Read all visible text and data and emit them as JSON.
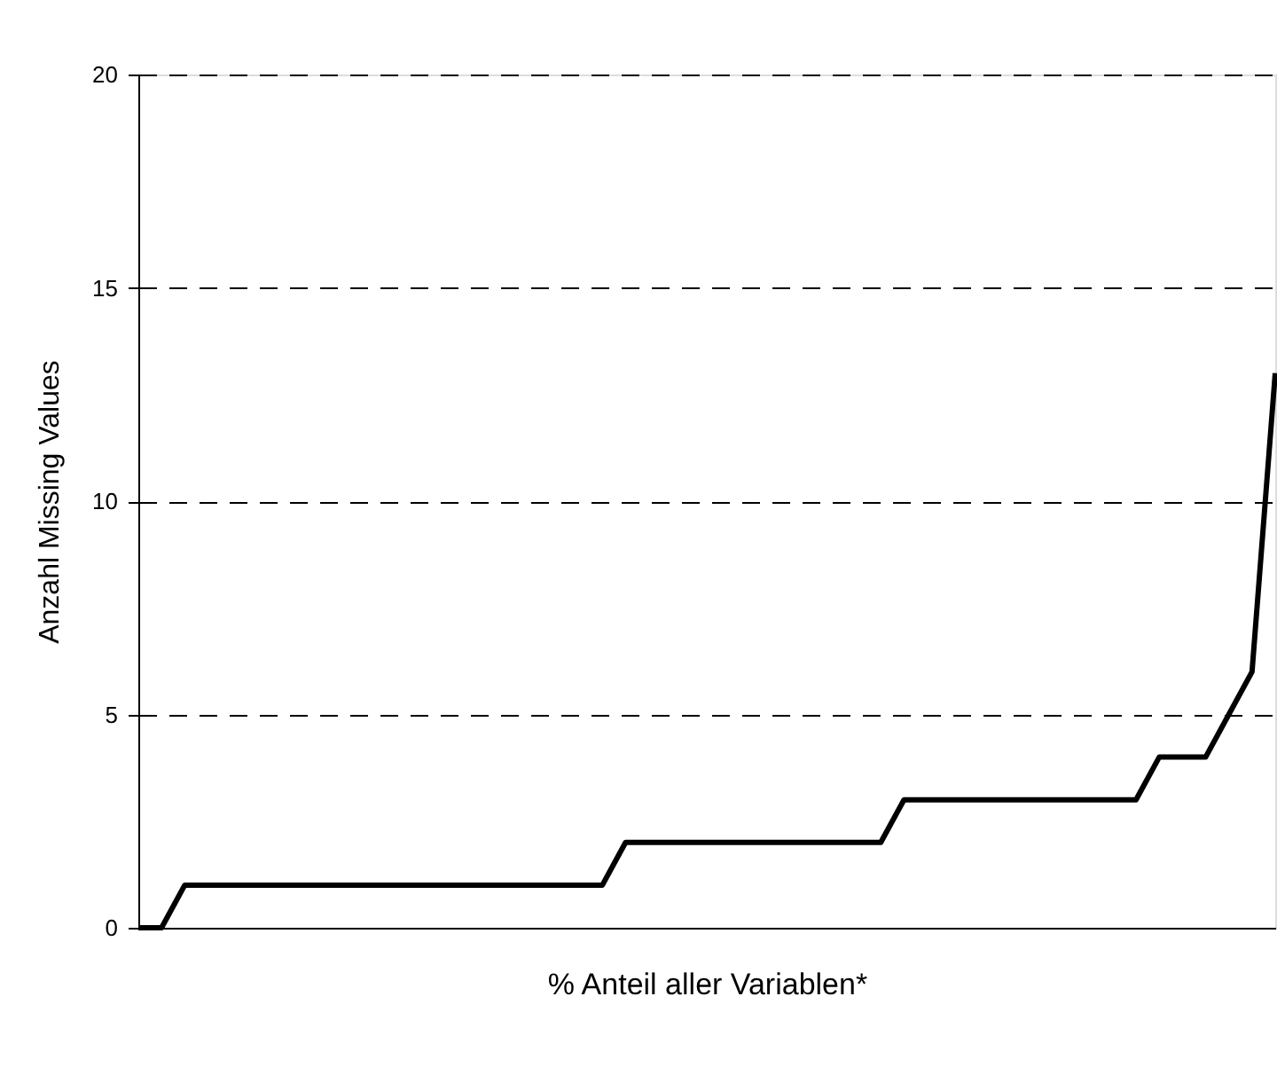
{
  "chart_data": {
    "type": "line",
    "xlabel": "% Anteil aller Variablen*",
    "ylabel": "Anzahl Missing Values",
    "categories": [
      null,
      null,
      null,
      null,
      null,
      null,
      null,
      null,
      null,
      null,
      null,
      null,
      null,
      null,
      null,
      null,
      null,
      null,
      null,
      null,
      null,
      null,
      null,
      null,
      null,
      null,
      null,
      null,
      null,
      null,
      null,
      null,
      null,
      null,
      null,
      null,
      null,
      null,
      null,
      null,
      null,
      null,
      null,
      null,
      null,
      null,
      null,
      null,
      null,
      null
    ],
    "series": [
      {
        "color": "#000000",
        "values": [
          0,
          0,
          1,
          1,
          1,
          1,
          1,
          1,
          1,
          1,
          1,
          1,
          1,
          1,
          1,
          1,
          1,
          1,
          1,
          1,
          1,
          2,
          2,
          2,
          2,
          2,
          2,
          2,
          2,
          2,
          2,
          2,
          2,
          3,
          3,
          3,
          3,
          3,
          3,
          3,
          3,
          3,
          3,
          3,
          4,
          4,
          4,
          5,
          6,
          13
        ]
      }
    ],
    "ylim": [
      0,
      20
    ],
    "yticks": [
      0,
      5,
      10,
      15,
      20
    ],
    "grid": "y",
    "tick_labels": "y",
    "marker": "none",
    "line_style": "solid"
  }
}
